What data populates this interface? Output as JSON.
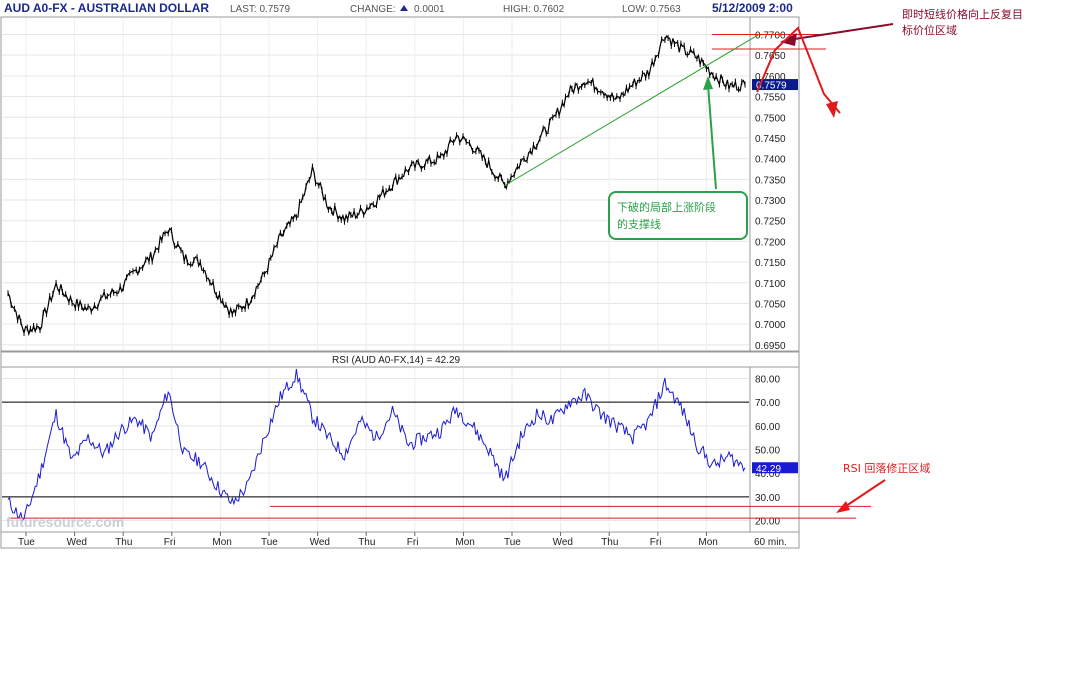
{
  "header": {
    "title": "AUD A0-FX - AUSTRALIAN DOLLAR",
    "last": "LAST: 0.7579",
    "change": "CHANGE:",
    "change_value": "0.0001",
    "high": "HIGH: 0.7602",
    "low": "LOW: 0.7563",
    "datetime": "5/12/2009 2:00"
  },
  "watermark": "futuresource.com",
  "colors": {
    "price": "#000000",
    "rsi": "#1b1bd1",
    "tag_bg": "#0a1a8a",
    "support": "#2ca02c",
    "annotation_red": "#e01b1b",
    "annotation_dark": "#8b0a2a",
    "green_box": "#2aa14a"
  },
  "annotations": {
    "target_zone": [
      "即时短线价格向上反复目",
      "标价位区域"
    ],
    "support_break": [
      "下破的局部上涨阶段",
      "的支撑线"
    ],
    "rsi_zone": "RSI  回落修正区域"
  },
  "chart_data": [
    {
      "type": "line",
      "title": "AUD A0-FX - AUSTRALIAN DOLLAR",
      "interval": "60 min.",
      "x_tick_labels": [
        "Tue",
        "Wed",
        "Thu",
        "Fri",
        "Mon",
        "Tue",
        "Wed",
        "Thu",
        "Fri",
        "Mon",
        "Tue",
        "Wed",
        "Thu",
        "Fri",
        "Mon"
      ],
      "x_interval_label": "60 min.",
      "y_ticks": [
        "0.7700",
        "0.7650",
        "0.7600",
        "0.7550",
        "0.7500",
        "0.7450",
        "0.7400",
        "0.7350",
        "0.7300",
        "0.7250",
        "0.7200",
        "0.7150",
        "0.7100",
        "0.7050",
        "0.7000",
        "0.6950"
      ],
      "ylim": [
        0.694,
        0.7735
      ],
      "last_tag": "0.7579",
      "series": [
        {
          "name": "AUD A0-FX",
          "points": [
            [
              0,
              0.7075
            ],
            [
              1,
              0.6985
            ],
            [
              2,
              0.6995
            ],
            [
              3,
              0.7095
            ],
            [
              4,
              0.7055
            ],
            [
              5,
              0.7035
            ],
            [
              6,
              0.7065
            ],
            [
              7,
              0.7085
            ],
            [
              8,
              0.713
            ],
            [
              9,
              0.7165
            ],
            [
              10,
              0.723
            ],
            [
              11,
              0.716
            ],
            [
              12,
              0.715
            ],
            [
              13,
              0.708
            ],
            [
              14,
              0.7025
            ],
            [
              15,
              0.7055
            ],
            [
              16,
              0.712
            ],
            [
              17,
              0.721
            ],
            [
              18,
              0.726
            ],
            [
              19,
              0.737
            ],
            [
              20,
              0.7285
            ],
            [
              21,
              0.7255
            ],
            [
              22,
              0.727
            ],
            [
              23,
              0.73
            ],
            [
              24,
              0.734
            ],
            [
              25,
              0.7375
            ],
            [
              26,
              0.739
            ],
            [
              27,
              0.74
            ],
            [
              28,
              0.7455
            ],
            [
              29,
              0.743
            ],
            [
              30,
              0.7385
            ],
            [
              31,
              0.7335
            ],
            [
              32,
              0.739
            ],
            [
              33,
              0.744
            ],
            [
              34,
              0.749
            ],
            [
              35,
              0.756
            ],
            [
              36,
              0.759
            ],
            [
              37,
              0.757
            ],
            [
              38,
              0.754
            ],
            [
              39,
              0.758
            ],
            [
              40,
              0.761
            ],
            [
              41,
              0.77
            ],
            [
              42,
              0.7665
            ],
            [
              43,
              0.7645
            ],
            [
              44,
              0.7605
            ],
            [
              45,
              0.7575
            ],
            [
              46,
              0.7579
            ]
          ],
          "x_categories_per_label": 3.07
        }
      ],
      "support_line": {
        "from": [
          31,
          0.7335
        ],
        "to": [
          45,
          0.77
        ]
      },
      "resistance_lines": [
        0.77,
        0.7665
      ]
    },
    {
      "type": "line",
      "title": "RSI (AUD A0-FX,14) = 42.29",
      "y_ticks": [
        "80.00",
        "70.00",
        "60.00",
        "50.00",
        "40.00",
        "30.00",
        "20.00"
      ],
      "ylim": [
        16,
        84
      ],
      "reference_lines": [
        70,
        30
      ],
      "correction_lines": [
        26,
        21
      ],
      "last_tag": "42.29",
      "series": [
        {
          "name": "RSI",
          "points": [
            [
              0,
              28
            ],
            [
              1,
              20
            ],
            [
              2,
              40
            ],
            [
              3,
              65
            ],
            [
              4,
              45
            ],
            [
              5,
              55
            ],
            [
              6,
              48
            ],
            [
              7,
              58
            ],
            [
              8,
              63
            ],
            [
              9,
              55
            ],
            [
              10,
              75
            ],
            [
              11,
              48
            ],
            [
              12,
              45
            ],
            [
              13,
              35
            ],
            [
              14,
              27
            ],
            [
              15,
              35
            ],
            [
              16,
              55
            ],
            [
              17,
              72
            ],
            [
              18,
              82
            ],
            [
              19,
              64
            ],
            [
              20,
              55
            ],
            [
              21,
              48
            ],
            [
              22,
              62
            ],
            [
              23,
              55
            ],
            [
              24,
              66
            ],
            [
              25,
              52
            ],
            [
              26,
              55
            ],
            [
              27,
              58
            ],
            [
              28,
              67
            ],
            [
              29,
              60
            ],
            [
              30,
              50
            ],
            [
              31,
              37
            ],
            [
              32,
              55
            ],
            [
              33,
              65
            ],
            [
              34,
              62
            ],
            [
              35,
              70
            ],
            [
              36,
              73
            ],
            [
              37,
              65
            ],
            [
              38,
              60
            ],
            [
              39,
              55
            ],
            [
              40,
              62
            ],
            [
              41,
              78
            ],
            [
              42,
              68
            ],
            [
              43,
              52
            ],
            [
              44,
              43
            ],
            [
              45,
              47
            ],
            [
              46,
              42.29
            ]
          ]
        }
      ]
    }
  ]
}
